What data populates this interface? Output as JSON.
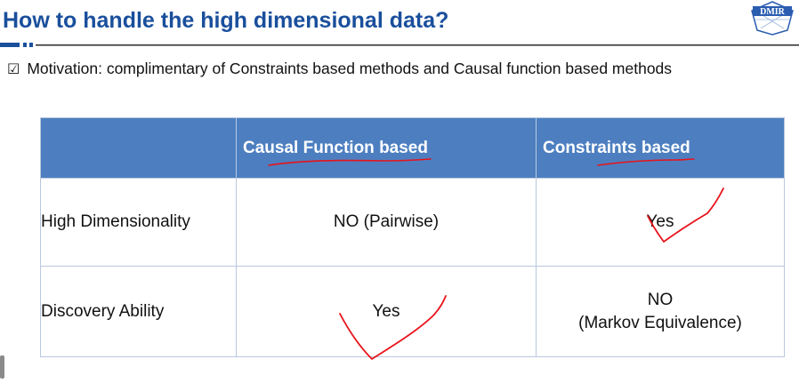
{
  "slide": {
    "title": "How to handle the high dimensional data?",
    "logo_text": "DMIR",
    "motivation_icon": "checkbox-checked-icon",
    "motivation": "Motivation: complimentary of Constraints based methods and Causal function based methods"
  },
  "table": {
    "headers": [
      "",
      "Causal Function based",
      "Constraints based"
    ],
    "rows": [
      {
        "label": "High Dimensionality",
        "causal_function": "NO (Pairwise)",
        "constraints": "Yes"
      },
      {
        "label": "Discovery Ability",
        "causal_function": "Yes",
        "constraints_line1": "NO",
        "constraints_line2": "(Markov Equivalence)"
      }
    ]
  },
  "colors": {
    "title": "#1a4f9c",
    "header_bg": "#4d7fc0",
    "negative_text": "#e21d1d",
    "annotation_ink": "#e8131b"
  }
}
